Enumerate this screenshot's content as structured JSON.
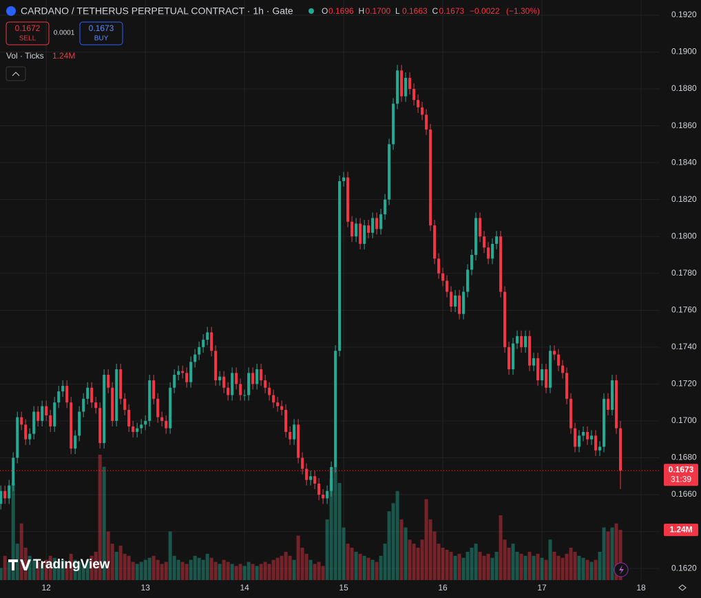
{
  "chart_data": {
    "type": "candlestick",
    "title": "CARDANO / TETHERUS PERPETUAL CONTRACT · 1h · Gate",
    "header": {
      "ohlc": [
        {
          "key": "O",
          "value": 0.1696
        },
        {
          "key": "H",
          "value": {
            "value": 0.17,
            "label": "0.1700"
          }
        },
        {
          "key": "L",
          "value": 0.1663
        },
        {
          "key": "C",
          "value": 0.1673
        }
      ],
      "change": {
        "value": -0.0022,
        "label": "−0.0022"
      },
      "change_pct": {
        "value": -1.3,
        "label": "(−1.30%)"
      },
      "sell": {
        "price": 0.1672,
        "label": "SELL"
      },
      "spread": 0.0001,
      "buy": {
        "price": 0.1673,
        "label": "BUY"
      },
      "volume_title": "Vol · Ticks",
      "volume_value": {
        "value": 1240000,
        "label": "1.24M"
      }
    },
    "last_price": {
      "value": 0.1673,
      "countdown": "31:39"
    },
    "logo": "TradingView",
    "up_color": "#22ab94",
    "down_color": "#f23645",
    "grid": true,
    "xlim": [
      12.8,
      172.5
    ],
    "xticks": [
      {
        "value": 24,
        "label": "12"
      },
      {
        "value": 48,
        "label": "13"
      },
      {
        "value": 72,
        "label": "14"
      },
      {
        "value": 96,
        "label": "15"
      },
      {
        "value": 120,
        "label": "16"
      },
      {
        "value": 144,
        "label": "17"
      },
      {
        "value": 168,
        "label": "18"
      }
    ],
    "ylim": [
      0.16137,
      0.19282
    ],
    "yticks": [
      {
        "value": 0.162,
        "label": "0.1620"
      },
      {
        "value": 0.164,
        "label": "0.1640"
      },
      {
        "value": 0.166,
        "label": "0.1660"
      },
      {
        "value": 0.168,
        "label": "0.1680"
      },
      {
        "value": 0.17,
        "label": "0.1700"
      },
      {
        "value": 0.172,
        "label": "0.1720"
      },
      {
        "value": 0.174,
        "label": "0.1740"
      },
      {
        "value": 0.176,
        "label": "0.1760"
      },
      {
        "value": 0.178,
        "label": "0.1780"
      },
      {
        "value": 0.18,
        "label": "0.1800"
      },
      {
        "value": 0.182,
        "label": "0.1820"
      },
      {
        "value": 0.184,
        "label": "0.1840"
      },
      {
        "value": 0.186,
        "label": "0.1860"
      },
      {
        "value": 0.188,
        "label": "0.1880"
      },
      {
        "value": 0.19,
        "label": "0.1900"
      },
      {
        "value": 0.192,
        "label": "0.1920"
      }
    ],
    "volume_lim": [
      0,
      4000000
    ],
    "x": [
      13,
      14,
      15,
      16,
      17,
      18,
      19,
      20,
      21,
      22,
      23,
      24,
      25,
      26,
      27,
      28,
      29,
      30,
      31,
      32,
      33,
      34,
      35,
      36,
      37,
      38,
      39,
      40,
      41,
      42,
      43,
      44,
      45,
      46,
      47,
      48,
      49,
      50,
      51,
      52,
      53,
      54,
      55,
      56,
      57,
      58,
      59,
      60,
      61,
      62,
      63,
      64,
      65,
      66,
      67,
      68,
      69,
      70,
      71,
      72,
      73,
      74,
      75,
      76,
      77,
      78,
      79,
      80,
      81,
      82,
      83,
      84,
      85,
      86,
      87,
      88,
      89,
      90,
      91,
      92,
      93,
      94,
      95,
      96,
      97,
      98,
      99,
      100,
      101,
      102,
      103,
      104,
      105,
      106,
      107,
      108,
      109,
      110,
      111,
      112,
      113,
      114,
      115,
      116,
      117,
      118,
      119,
      120,
      121,
      122,
      123,
      124,
      125,
      126,
      127,
      128,
      129,
      130,
      131,
      132,
      133,
      134,
      135,
      136,
      137,
      138,
      139,
      140,
      141,
      142,
      143,
      144,
      145,
      146,
      147,
      148,
      149,
      150,
      151,
      152,
      153,
      154,
      155,
      156,
      157,
      158,
      159,
      160,
      161,
      162,
      163
    ],
    "open": [
      0.1655,
      0.1662,
      0.1658,
      0.1665,
      0.168,
      0.1702,
      0.1698,
      0.169,
      0.1693,
      0.1705,
      0.17,
      0.1708,
      0.1703,
      0.1697,
      0.171,
      0.1716,
      0.1719,
      0.171,
      0.1685,
      0.1692,
      0.1705,
      0.1712,
      0.1718,
      0.171,
      0.1707,
      0.1688,
      0.1725,
      0.1718,
      0.17,
      0.1728,
      0.1712,
      0.1706,
      0.1697,
      0.1694,
      0.1696,
      0.1698,
      0.17,
      0.1722,
      0.1712,
      0.1702,
      0.17,
      0.1696,
      0.1718,
      0.1725,
      0.1727,
      0.1726,
      0.1721,
      0.1732,
      0.1736,
      0.174,
      0.1744,
      0.1748,
      0.1738,
      0.1722,
      0.1724,
      0.1718,
      0.1714,
      0.1726,
      0.172,
      0.1714,
      0.1714,
      0.1726,
      0.172,
      0.1728,
      0.1722,
      0.1718,
      0.1714,
      0.171,
      0.1708,
      0.1706,
      0.1694,
      0.169,
      0.1698,
      0.168,
      0.1674,
      0.1668,
      0.167,
      0.1666,
      0.166,
      0.1658,
      0.1662,
      0.1675,
      0.1738,
      0.183,
      0.1832,
      0.1808,
      0.18,
      0.1807,
      0.1796,
      0.1806,
      0.1802,
      0.181,
      0.1804,
      0.1812,
      0.182,
      0.185,
      0.1872,
      0.189,
      0.1876,
      0.1886,
      0.188,
      0.1874,
      0.187,
      0.1866,
      0.1858,
      0.1806,
      0.1788,
      0.178,
      0.1776,
      0.177,
      0.1762,
      0.1768,
      0.1758,
      0.177,
      0.1782,
      0.179,
      0.181,
      0.18,
      0.1794,
      0.1788,
      0.1796,
      0.18,
      0.177,
      0.174,
      0.1728,
      0.1742,
      0.1746,
      0.174,
      0.1746,
      0.173,
      0.1734,
      0.1722,
      0.1728,
      0.1718,
      0.1738,
      0.1736,
      0.173,
      0.1726,
      0.1712,
      0.1696,
      0.1686,
      0.1692,
      0.1694,
      0.169,
      0.1692,
      0.1684,
      0.1686,
      0.1712,
      0.1706,
      0.1722,
      0.1696
    ],
    "high": [
      0.1665,
      0.1665,
      0.1668,
      0.1683,
      0.1705,
      0.1705,
      0.1701,
      0.1696,
      0.1708,
      0.1708,
      0.1711,
      0.1711,
      0.1706,
      0.1713,
      0.1719,
      0.1722,
      0.1722,
      0.1713,
      0.1695,
      0.1708,
      0.1715,
      0.1721,
      0.1721,
      0.1713,
      0.171,
      0.1728,
      0.1728,
      0.1721,
      0.1731,
      0.1731,
      0.1715,
      0.1709,
      0.17,
      0.1699,
      0.1701,
      0.1703,
      0.1725,
      0.1725,
      0.1715,
      0.1705,
      0.1703,
      0.1721,
      0.1728,
      0.173,
      0.173,
      0.1729,
      0.1735,
      0.1739,
      0.1743,
      0.1747,
      0.1751,
      0.1751,
      0.1741,
      0.1727,
      0.1727,
      0.1721,
      0.1729,
      0.1729,
      0.1723,
      0.1717,
      0.1729,
      0.1729,
      0.1731,
      0.1731,
      0.1725,
      0.1721,
      0.1717,
      0.1713,
      0.1711,
      0.1709,
      0.1697,
      0.1701,
      0.1701,
      0.1683,
      0.1677,
      0.1673,
      0.1673,
      0.1669,
      0.1663,
      0.1665,
      0.1678,
      0.1741,
      0.1833,
      0.1835,
      0.1835,
      0.1811,
      0.181,
      0.181,
      0.1809,
      0.1809,
      0.1813,
      0.1813,
      0.1815,
      0.1823,
      0.1853,
      0.1875,
      0.1893,
      0.1893,
      0.1889,
      0.1889,
      0.1883,
      0.1877,
      0.1873,
      0.1869,
      0.1861,
      0.1809,
      0.1791,
      0.1783,
      0.1779,
      0.1773,
      0.1771,
      0.1771,
      0.1773,
      0.1785,
      0.1793,
      0.1813,
      0.1813,
      0.1803,
      0.1797,
      0.1799,
      0.1803,
      0.1803,
      0.1773,
      0.1743,
      0.1745,
      0.1749,
      0.1749,
      0.1749,
      0.1749,
      0.1737,
      0.1737,
      0.1731,
      0.1731,
      0.1741,
      0.1741,
      0.1739,
      0.1733,
      0.1729,
      0.1715,
      0.1699,
      0.1695,
      0.1697,
      0.1697,
      0.1695,
      0.1695,
      0.1689,
      0.1715,
      0.1715,
      0.1725,
      0.1725,
      0.17
    ],
    "low": [
      0.1652,
      0.1655,
      0.1655,
      0.1662,
      0.1677,
      0.1695,
      0.1687,
      0.1687,
      0.169,
      0.1697,
      0.1697,
      0.17,
      0.1694,
      0.1694,
      0.1707,
      0.1713,
      0.1707,
      0.1682,
      0.1682,
      0.1689,
      0.1702,
      0.1709,
      0.1707,
      0.1704,
      0.1685,
      0.1685,
      0.1715,
      0.1697,
      0.1697,
      0.1709,
      0.1703,
      0.1694,
      0.1691,
      0.1691,
      0.1693,
      0.1695,
      0.1697,
      0.1709,
      0.1699,
      0.1697,
      0.1693,
      0.1693,
      0.1715,
      0.1722,
      0.1723,
      0.1718,
      0.1718,
      0.1729,
      0.1733,
      0.1737,
      0.1741,
      0.1735,
      0.1719,
      0.1719,
      0.1715,
      0.1711,
      0.1711,
      0.1717,
      0.1711,
      0.1711,
      0.1711,
      0.1717,
      0.1717,
      0.1719,
      0.1715,
      0.1711,
      0.1707,
      0.1705,
      0.1703,
      0.1691,
      0.1687,
      0.1687,
      0.1677,
      0.1671,
      0.1665,
      0.1665,
      0.1663,
      0.1657,
      0.1655,
      0.1655,
      0.1659,
      0.1672,
      0.1735,
      0.1827,
      0.1805,
      0.1797,
      0.1797,
      0.1793,
      0.1793,
      0.1799,
      0.1799,
      0.1801,
      0.1801,
      0.1809,
      0.1817,
      0.1847,
      0.1869,
      0.1873,
      0.1873,
      0.1877,
      0.1871,
      0.1867,
      0.1863,
      0.1855,
      0.1803,
      0.1785,
      0.1777,
      0.1773,
      0.1767,
      0.1759,
      0.1759,
      0.1755,
      0.1755,
      0.1767,
      0.1779,
      0.1787,
      0.1797,
      0.1791,
      0.1785,
      0.1785,
      0.1793,
      0.1767,
      0.1737,
      0.1725,
      0.1725,
      0.1739,
      0.1737,
      0.1737,
      0.1727,
      0.1727,
      0.1719,
      0.1719,
      0.1715,
      0.1715,
      0.1733,
      0.1727,
      0.1723,
      0.1709,
      0.1693,
      0.1683,
      0.1683,
      0.1689,
      0.1687,
      0.1687,
      0.1681,
      0.1681,
      0.1683,
      0.1703,
      0.1703,
      0.1693,
      0.1663
    ],
    "close": [
      0.1662,
      0.1658,
      0.1665,
      0.168,
      0.1702,
      0.1698,
      0.169,
      0.1693,
      0.1705,
      0.17,
      0.1708,
      0.1703,
      0.1697,
      0.171,
      0.1716,
      0.1719,
      0.171,
      0.1685,
      0.1692,
      0.1705,
      0.1712,
      0.1718,
      0.171,
      0.1707,
      0.1688,
      0.1725,
      0.1718,
      0.17,
      0.1728,
      0.1712,
      0.1706,
      0.1697,
      0.1694,
      0.1696,
      0.1698,
      0.17,
      0.1722,
      0.1712,
      0.1702,
      0.17,
      0.1696,
      0.1718,
      0.1725,
      0.1727,
      0.1726,
      0.1721,
      0.1732,
      0.1736,
      0.174,
      0.1744,
      0.1748,
      0.1738,
      0.1722,
      0.1724,
      0.1718,
      0.1714,
      0.1726,
      0.172,
      0.1714,
      0.1714,
      0.1726,
      0.172,
      0.1728,
      0.1722,
      0.1718,
      0.1714,
      0.171,
      0.1708,
      0.1706,
      0.1694,
      0.169,
      0.1698,
      0.168,
      0.1674,
      0.1668,
      0.167,
      0.1666,
      0.166,
      0.1658,
      0.1662,
      0.1675,
      0.1738,
      0.183,
      0.1832,
      0.1808,
      0.18,
      0.1807,
      0.1796,
      0.1806,
      0.1802,
      0.181,
      0.1804,
      0.1812,
      0.182,
      0.185,
      0.1872,
      0.189,
      0.1876,
      0.1886,
      0.188,
      0.1874,
      0.187,
      0.1866,
      0.1858,
      0.1806,
      0.1788,
      0.178,
      0.1776,
      0.177,
      0.1762,
      0.1768,
      0.1758,
      0.177,
      0.1782,
      0.179,
      0.181,
      0.18,
      0.1794,
      0.1788,
      0.1796,
      0.18,
      0.177,
      0.174,
      0.1728,
      0.1742,
      0.1746,
      0.174,
      0.1746,
      0.173,
      0.1734,
      0.1722,
      0.1728,
      0.1718,
      0.1738,
      0.1736,
      0.173,
      0.1726,
      0.1712,
      0.1696,
      0.1686,
      0.1692,
      0.1694,
      0.169,
      0.1692,
      0.1684,
      0.1686,
      0.1712,
      0.1706,
      0.1722,
      0.1696,
      0.1673
    ],
    "volume": [
      300000,
      600000,
      450000,
      2400000,
      900000,
      1400000,
      800000,
      600000,
      500000,
      450000,
      400000,
      500000,
      600000,
      550000,
      450000,
      500000,
      400000,
      650000,
      500000,
      450000,
      400000,
      500000,
      600000,
      700000,
      3100000,
      2800000,
      1200000,
      900000,
      700000,
      850000,
      650000,
      600000,
      450000,
      400000,
      450000,
      500000,
      550000,
      600000,
      500000,
      400000,
      450000,
      1200000,
      600000,
      500000,
      450000,
      400000,
      500000,
      600000,
      550000,
      500000,
      650000,
      550000,
      450000,
      400000,
      500000,
      450000,
      400000,
      350000,
      400000,
      350000,
      450000,
      400000,
      350000,
      400000,
      450000,
      400000,
      500000,
      550000,
      600000,
      700000,
      600000,
      500000,
      1100000,
      800000,
      650000,
      500000,
      400000,
      450000,
      350000,
      1500000,
      2500000,
      2800000,
      2400000,
      1300000,
      900000,
      800000,
      700000,
      650000,
      600000,
      550000,
      500000,
      450000,
      600000,
      900000,
      1700000,
      1900000,
      2200000,
      1500000,
      1300000,
      1000000,
      900000,
      800000,
      1000000,
      2000000,
      1500000,
      1200000,
      900000,
      800000,
      750000,
      700000,
      600000,
      650000,
      550000,
      700000,
      800000,
      900000,
      700000,
      600000,
      650000,
      550000,
      700000,
      1600000,
      1000000,
      800000,
      900000,
      700000,
      650000,
      600000,
      700000,
      600000,
      650000,
      550000,
      500000,
      1000000,
      700000,
      600000,
      550000,
      650000,
      800000,
      700000,
      600000,
      550000,
      500000,
      450000,
      500000,
      700000,
      1300000,
      1200000,
      1300000,
      1400000,
      1240000
    ]
  }
}
